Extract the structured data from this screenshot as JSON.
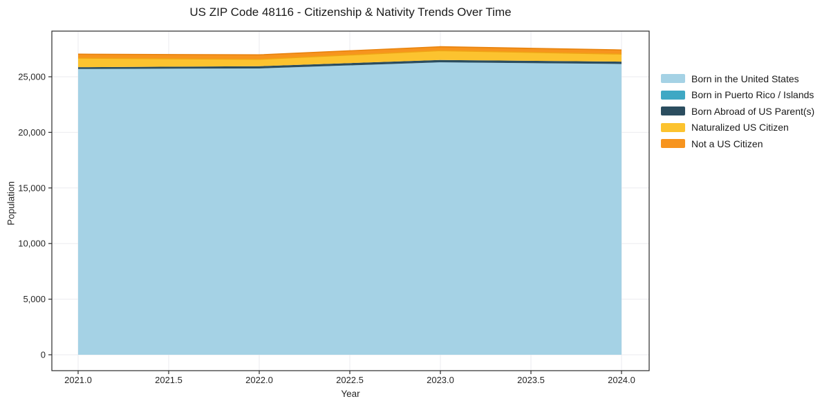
{
  "chart_data": {
    "type": "area",
    "stacked": true,
    "title": "US ZIP Code 48116 - Citizenship & Nativity Trends Over Time",
    "xlabel": "Year",
    "ylabel": "Population",
    "x": [
      2021,
      2022,
      2023,
      2024
    ],
    "series": [
      {
        "name": "Born in the United States",
        "color": "#A5D2E5",
        "values": [
          25700,
          25750,
          26300,
          26150
        ]
      },
      {
        "name": "Born in Puerto Rico / Islands",
        "color": "#3FA8C4",
        "values": [
          0,
          0,
          0,
          0
        ]
      },
      {
        "name": "Born Abroad of US Parent(s)",
        "color": "#2B4D5F",
        "values": [
          160,
          200,
          210,
          210
        ]
      },
      {
        "name": "Naturalized US Citizen",
        "color": "#FCC32F",
        "values": [
          820,
          620,
          840,
          680
        ]
      },
      {
        "name": "Not a US Citizen",
        "color": "#F7941E",
        "values": [
          350,
          400,
          350,
          370
        ]
      }
    ],
    "xticks": {
      "values": [
        2021.0,
        2021.5,
        2022.0,
        2022.5,
        2023.0,
        2023.5,
        2024.0
      ],
      "labels": [
        "2021.0",
        "2021.5",
        "2022.0",
        "2022.5",
        "2023.0",
        "2023.5",
        "2024.0"
      ]
    },
    "yticks": {
      "values": [
        0,
        5000,
        10000,
        15000,
        20000,
        25000
      ],
      "labels": [
        "0",
        "5,000",
        "10,000",
        "15,000",
        "20,000",
        "25,000"
      ]
    },
    "xlim": [
      2020.85,
      2024.15
    ],
    "ylim": [
      -1430,
      29100
    ],
    "grid": true,
    "legend_position": "center-right"
  },
  "colors": {
    "background": "#ffffff",
    "grid": "#ebebef",
    "spine": "#2a2a2a",
    "text": "#262626"
  }
}
